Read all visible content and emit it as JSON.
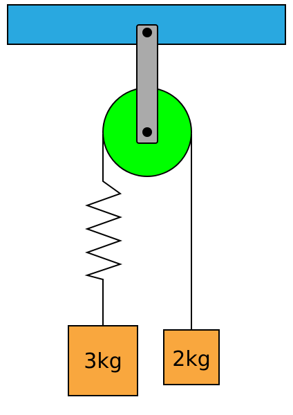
{
  "masses": {
    "left": {
      "label": "3kg"
    },
    "right": {
      "label": "2kg"
    }
  },
  "colors": {
    "ceiling": "#29a8e0",
    "pulley": "#00ff00",
    "bracket": "#aaaaaa",
    "mass_fill": "#f9a73e",
    "line": "#000000"
  }
}
